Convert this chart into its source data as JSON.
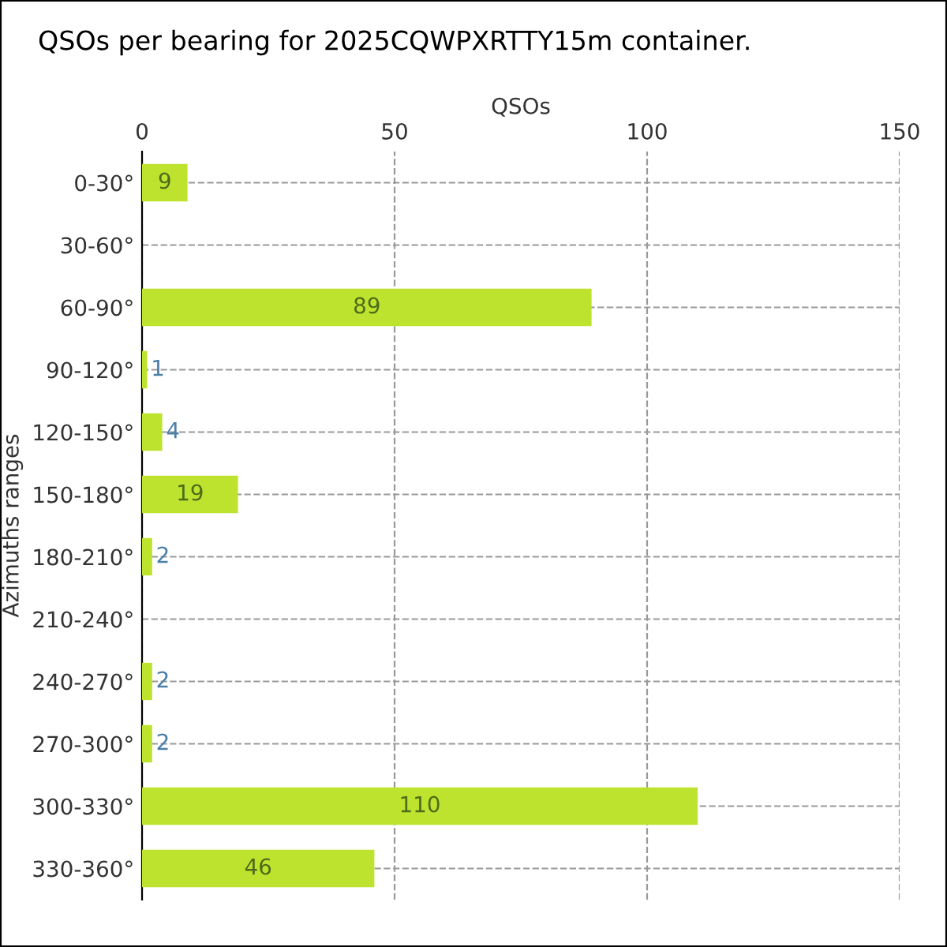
{
  "chart_data": {
    "type": "bar",
    "orientation": "horizontal",
    "title": "QSOs per bearing for 2025CQWPXRTTY15m container.",
    "xlabel": "QSOs",
    "ylabel": "Azimuths ranges",
    "categories": [
      "0-30°",
      "30-60°",
      "60-90°",
      "90-120°",
      "120-150°",
      "150-180°",
      "180-210°",
      "210-240°",
      "240-270°",
      "270-300°",
      "300-330°",
      "330-360°"
    ],
    "values": [
      9,
      0,
      89,
      1,
      4,
      19,
      2,
      0,
      2,
      2,
      110,
      46
    ],
    "value_labels": [
      "9",
      null,
      "89",
      "1",
      "4",
      "19",
      "2",
      null,
      "2",
      "2",
      "110",
      "46"
    ],
    "color": "#bde32e",
    "xlim": [
      0,
      150
    ],
    "xticks": [
      0,
      50,
      100,
      150
    ],
    "grid": true,
    "legend": false
  }
}
